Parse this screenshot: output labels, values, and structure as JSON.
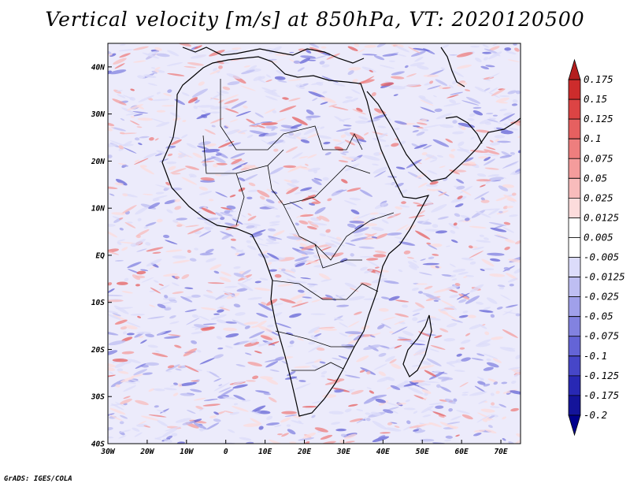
{
  "title": "Vertical velocity [m/s] at 850hPa, VT: 2020120500",
  "credit": "GrADS: IGES/COLA",
  "map": {
    "lon_range": [
      -30,
      75
    ],
    "lat_range": [
      -40,
      45
    ],
    "lat_ticks": [
      "40N",
      "30N",
      "20N",
      "10N",
      "EQ",
      "10S",
      "20S",
      "30S",
      "40S"
    ],
    "lon_ticks": [
      "30W",
      "20W",
      "10W",
      "0",
      "10E",
      "20E",
      "30E",
      "40E",
      "50E",
      "60E",
      "70E"
    ],
    "field": "vertical velocity",
    "level": "850hPa",
    "units": "m/s"
  },
  "colorbar": {
    "levels": [
      "0.175",
      "0.15",
      "0.125",
      "0.1",
      "0.075",
      "0.05",
      "0.025",
      "0.0125",
      "0.005",
      "-0.005",
      "-0.0125",
      "-0.025",
      "-0.05",
      "-0.075",
      "-0.1",
      "-0.125",
      "-0.175",
      "-0.2"
    ],
    "colors": [
      "#b41e1e",
      "#cd2c2c",
      "#dc4444",
      "#e66060",
      "#ee7e7e",
      "#f49c9c",
      "#f8bcbc",
      "#fcdcdc",
      "#ffffff",
      "#ffffff",
      "#dcdcfa",
      "#bebef2",
      "#a0a0ea",
      "#8282e0",
      "#6464d6",
      "#4646c8",
      "#2828b4",
      "#14149a",
      "#00008c"
    ]
  }
}
